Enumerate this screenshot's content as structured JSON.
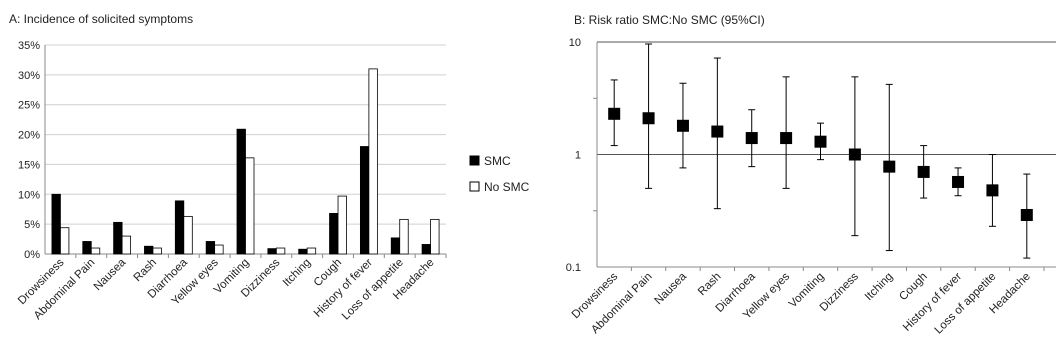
{
  "panel_a": {
    "title": "A: Incidence of solicited symptoms",
    "legend": [
      {
        "label": "SMC",
        "color": "#000000"
      },
      {
        "label": "No SMC",
        "color": "#ffffff"
      }
    ]
  },
  "panel_b": {
    "title": "B: Risk ratio SMC:No SMC (95%CI)"
  },
  "chart_data": [
    {
      "type": "bar",
      "title": "A: Incidence of solicited symptoms",
      "xlabel": "",
      "ylabel": "",
      "ylim": [
        0,
        0.35
      ],
      "y_ticks": [
        "0%",
        "5%",
        "10%",
        "15%",
        "20%",
        "25%",
        "30%",
        "35%"
      ],
      "categories": [
        "Drowsiness",
        "Abdominal Pain",
        "Nausea",
        "Rash",
        "Diarrhoea",
        "Yellow eyes",
        "Vomiting",
        "Dizziness",
        "Itching",
        "Cough",
        "History of fever",
        "Loss of appetite",
        "Headache"
      ],
      "series": [
        {
          "name": "SMC",
          "color": "#000000",
          "values": [
            0.1,
            0.021,
            0.053,
            0.013,
            0.089,
            0.021,
            0.209,
            0.009,
            0.008,
            0.068,
            0.18,
            0.027,
            0.016
          ]
        },
        {
          "name": "No SMC",
          "color": "#ffffff",
          "values": [
            0.044,
            0.01,
            0.03,
            0.01,
            0.063,
            0.015,
            0.161,
            0.01,
            0.01,
            0.097,
            0.31,
            0.058,
            0.058
          ]
        }
      ],
      "grid": "horizontal",
      "legend_position": "right"
    },
    {
      "type": "scatter",
      "title": "B: Risk ratio SMC:No SMC (95%CI)",
      "xlabel": "",
      "ylabel": "",
      "y_scale": "log",
      "ylim": [
        0.1,
        10
      ],
      "y_ticks": [
        "0.1",
        "1",
        "10"
      ],
      "categories": [
        "Drowsiness",
        "Abdominal Pain",
        "Nausea",
        "Rash",
        "Diarrhoea",
        "Yellow eyes",
        "Vomiting",
        "Dizziness",
        "Itching",
        "Cough",
        "History of fever",
        "Loss of appetite",
        "Headache"
      ],
      "series": [
        {
          "values": [
            2.3,
            2.1,
            1.8,
            1.6,
            1.4,
            1.4,
            1.3,
            1.0,
            0.78,
            0.7,
            0.57,
            0.48,
            0.29
          ],
          "ci_lower": [
            1.2,
            0.5,
            0.76,
            0.33,
            0.78,
            0.5,
            0.9,
            0.19,
            0.14,
            0.41,
            0.43,
            0.23,
            0.12
          ],
          "ci_upper": [
            4.6,
            9.6,
            4.3,
            7.2,
            2.5,
            4.9,
            1.9,
            4.9,
            4.2,
            1.2,
            0.76,
            1.0,
            0.67
          ]
        }
      ],
      "grid": "horizontal",
      "legend_position": "none"
    }
  ]
}
